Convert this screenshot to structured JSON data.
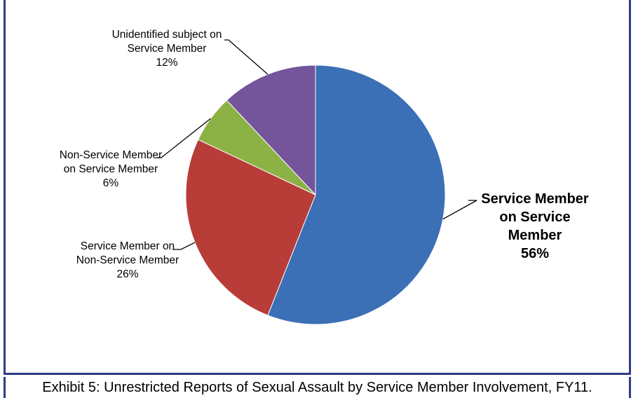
{
  "caption": "Exhibit 5:  Unrestricted Reports of Sexual Assault by Service Member Involvement, FY11.",
  "chart_data": {
    "type": "pie",
    "title": "",
    "slices": [
      {
        "name": "Service Member on Service Member",
        "value": 56,
        "value_label": "56%",
        "color": "#3b6fb6",
        "label_lines": [
          "Service Member",
          "on Service",
          "Member"
        ]
      },
      {
        "name": "Service Member on Non-Service Member",
        "value": 26,
        "value_label": "26%",
        "color": "#b83c38",
        "label_lines": [
          "Service Member on",
          "Non-Service Member"
        ]
      },
      {
        "name": "Non-Service Member on Service Member",
        "value": 6,
        "value_label": "6%",
        "color": "#8cb246",
        "label_lines": [
          "Non-Service Member",
          "on Service Member"
        ]
      },
      {
        "name": "Unidentified subject on Service Member",
        "value": 12,
        "value_label": "12%",
        "color": "#74559c",
        "label_lines": [
          "Unidentified subject on",
          "Service Member"
        ]
      }
    ],
    "start": "12 o'clock",
    "direction": "clockwise",
    "legend": "none"
  }
}
